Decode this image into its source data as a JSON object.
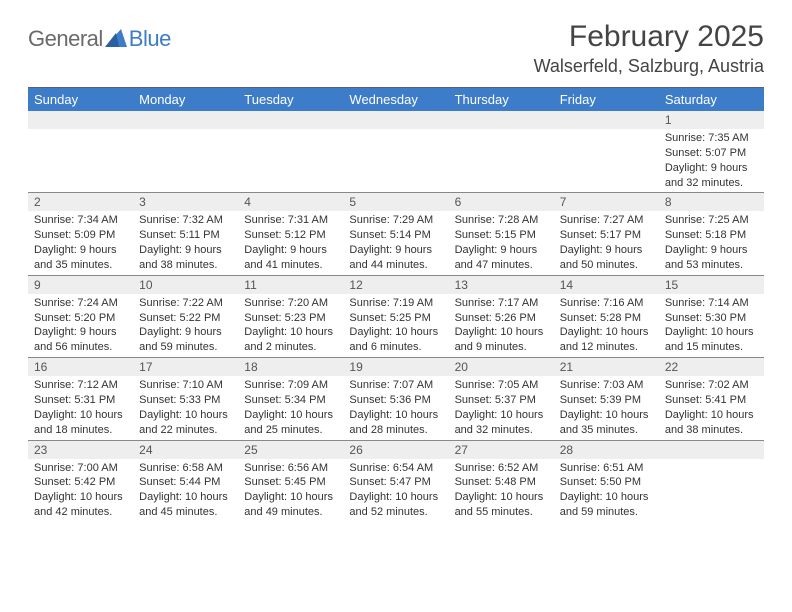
{
  "brand": {
    "word1": "General",
    "word2": "Blue"
  },
  "header": {
    "month_title": "February 2025",
    "location": "Walserfeld, Salzburg, Austria"
  },
  "colors": {
    "header_bar": "#3d7cc9",
    "daynum_bg": "#eeeeee",
    "text": "#333333",
    "title": "#444444",
    "logo_word1": "#6a6a6a",
    "logo_word2": "#3d7cc9",
    "divider": "#606060",
    "week_border": "#888888",
    "background": "#ffffff"
  },
  "weekdays": [
    "Sunday",
    "Monday",
    "Tuesday",
    "Wednesday",
    "Thursday",
    "Friday",
    "Saturday"
  ],
  "weeks": [
    [
      null,
      null,
      null,
      null,
      null,
      null,
      {
        "n": "1",
        "sunrise": "Sunrise: 7:35 AM",
        "sunset": "Sunset: 5:07 PM",
        "daylight1": "Daylight: 9 hours",
        "daylight2": "and 32 minutes."
      }
    ],
    [
      {
        "n": "2",
        "sunrise": "Sunrise: 7:34 AM",
        "sunset": "Sunset: 5:09 PM",
        "daylight1": "Daylight: 9 hours",
        "daylight2": "and 35 minutes."
      },
      {
        "n": "3",
        "sunrise": "Sunrise: 7:32 AM",
        "sunset": "Sunset: 5:11 PM",
        "daylight1": "Daylight: 9 hours",
        "daylight2": "and 38 minutes."
      },
      {
        "n": "4",
        "sunrise": "Sunrise: 7:31 AM",
        "sunset": "Sunset: 5:12 PM",
        "daylight1": "Daylight: 9 hours",
        "daylight2": "and 41 minutes."
      },
      {
        "n": "5",
        "sunrise": "Sunrise: 7:29 AM",
        "sunset": "Sunset: 5:14 PM",
        "daylight1": "Daylight: 9 hours",
        "daylight2": "and 44 minutes."
      },
      {
        "n": "6",
        "sunrise": "Sunrise: 7:28 AM",
        "sunset": "Sunset: 5:15 PM",
        "daylight1": "Daylight: 9 hours",
        "daylight2": "and 47 minutes."
      },
      {
        "n": "7",
        "sunrise": "Sunrise: 7:27 AM",
        "sunset": "Sunset: 5:17 PM",
        "daylight1": "Daylight: 9 hours",
        "daylight2": "and 50 minutes."
      },
      {
        "n": "8",
        "sunrise": "Sunrise: 7:25 AM",
        "sunset": "Sunset: 5:18 PM",
        "daylight1": "Daylight: 9 hours",
        "daylight2": "and 53 minutes."
      }
    ],
    [
      {
        "n": "9",
        "sunrise": "Sunrise: 7:24 AM",
        "sunset": "Sunset: 5:20 PM",
        "daylight1": "Daylight: 9 hours",
        "daylight2": "and 56 minutes."
      },
      {
        "n": "10",
        "sunrise": "Sunrise: 7:22 AM",
        "sunset": "Sunset: 5:22 PM",
        "daylight1": "Daylight: 9 hours",
        "daylight2": "and 59 minutes."
      },
      {
        "n": "11",
        "sunrise": "Sunrise: 7:20 AM",
        "sunset": "Sunset: 5:23 PM",
        "daylight1": "Daylight: 10 hours",
        "daylight2": "and 2 minutes."
      },
      {
        "n": "12",
        "sunrise": "Sunrise: 7:19 AM",
        "sunset": "Sunset: 5:25 PM",
        "daylight1": "Daylight: 10 hours",
        "daylight2": "and 6 minutes."
      },
      {
        "n": "13",
        "sunrise": "Sunrise: 7:17 AM",
        "sunset": "Sunset: 5:26 PM",
        "daylight1": "Daylight: 10 hours",
        "daylight2": "and 9 minutes."
      },
      {
        "n": "14",
        "sunrise": "Sunrise: 7:16 AM",
        "sunset": "Sunset: 5:28 PM",
        "daylight1": "Daylight: 10 hours",
        "daylight2": "and 12 minutes."
      },
      {
        "n": "15",
        "sunrise": "Sunrise: 7:14 AM",
        "sunset": "Sunset: 5:30 PM",
        "daylight1": "Daylight: 10 hours",
        "daylight2": "and 15 minutes."
      }
    ],
    [
      {
        "n": "16",
        "sunrise": "Sunrise: 7:12 AM",
        "sunset": "Sunset: 5:31 PM",
        "daylight1": "Daylight: 10 hours",
        "daylight2": "and 18 minutes."
      },
      {
        "n": "17",
        "sunrise": "Sunrise: 7:10 AM",
        "sunset": "Sunset: 5:33 PM",
        "daylight1": "Daylight: 10 hours",
        "daylight2": "and 22 minutes."
      },
      {
        "n": "18",
        "sunrise": "Sunrise: 7:09 AM",
        "sunset": "Sunset: 5:34 PM",
        "daylight1": "Daylight: 10 hours",
        "daylight2": "and 25 minutes."
      },
      {
        "n": "19",
        "sunrise": "Sunrise: 7:07 AM",
        "sunset": "Sunset: 5:36 PM",
        "daylight1": "Daylight: 10 hours",
        "daylight2": "and 28 minutes."
      },
      {
        "n": "20",
        "sunrise": "Sunrise: 7:05 AM",
        "sunset": "Sunset: 5:37 PM",
        "daylight1": "Daylight: 10 hours",
        "daylight2": "and 32 minutes."
      },
      {
        "n": "21",
        "sunrise": "Sunrise: 7:03 AM",
        "sunset": "Sunset: 5:39 PM",
        "daylight1": "Daylight: 10 hours",
        "daylight2": "and 35 minutes."
      },
      {
        "n": "22",
        "sunrise": "Sunrise: 7:02 AM",
        "sunset": "Sunset: 5:41 PM",
        "daylight1": "Daylight: 10 hours",
        "daylight2": "and 38 minutes."
      }
    ],
    [
      {
        "n": "23",
        "sunrise": "Sunrise: 7:00 AM",
        "sunset": "Sunset: 5:42 PM",
        "daylight1": "Daylight: 10 hours",
        "daylight2": "and 42 minutes."
      },
      {
        "n": "24",
        "sunrise": "Sunrise: 6:58 AM",
        "sunset": "Sunset: 5:44 PM",
        "daylight1": "Daylight: 10 hours",
        "daylight2": "and 45 minutes."
      },
      {
        "n": "25",
        "sunrise": "Sunrise: 6:56 AM",
        "sunset": "Sunset: 5:45 PM",
        "daylight1": "Daylight: 10 hours",
        "daylight2": "and 49 minutes."
      },
      {
        "n": "26",
        "sunrise": "Sunrise: 6:54 AM",
        "sunset": "Sunset: 5:47 PM",
        "daylight1": "Daylight: 10 hours",
        "daylight2": "and 52 minutes."
      },
      {
        "n": "27",
        "sunrise": "Sunrise: 6:52 AM",
        "sunset": "Sunset: 5:48 PM",
        "daylight1": "Daylight: 10 hours",
        "daylight2": "and 55 minutes."
      },
      {
        "n": "28",
        "sunrise": "Sunrise: 6:51 AM",
        "sunset": "Sunset: 5:50 PM",
        "daylight1": "Daylight: 10 hours",
        "daylight2": "and 59 minutes."
      },
      null
    ]
  ]
}
